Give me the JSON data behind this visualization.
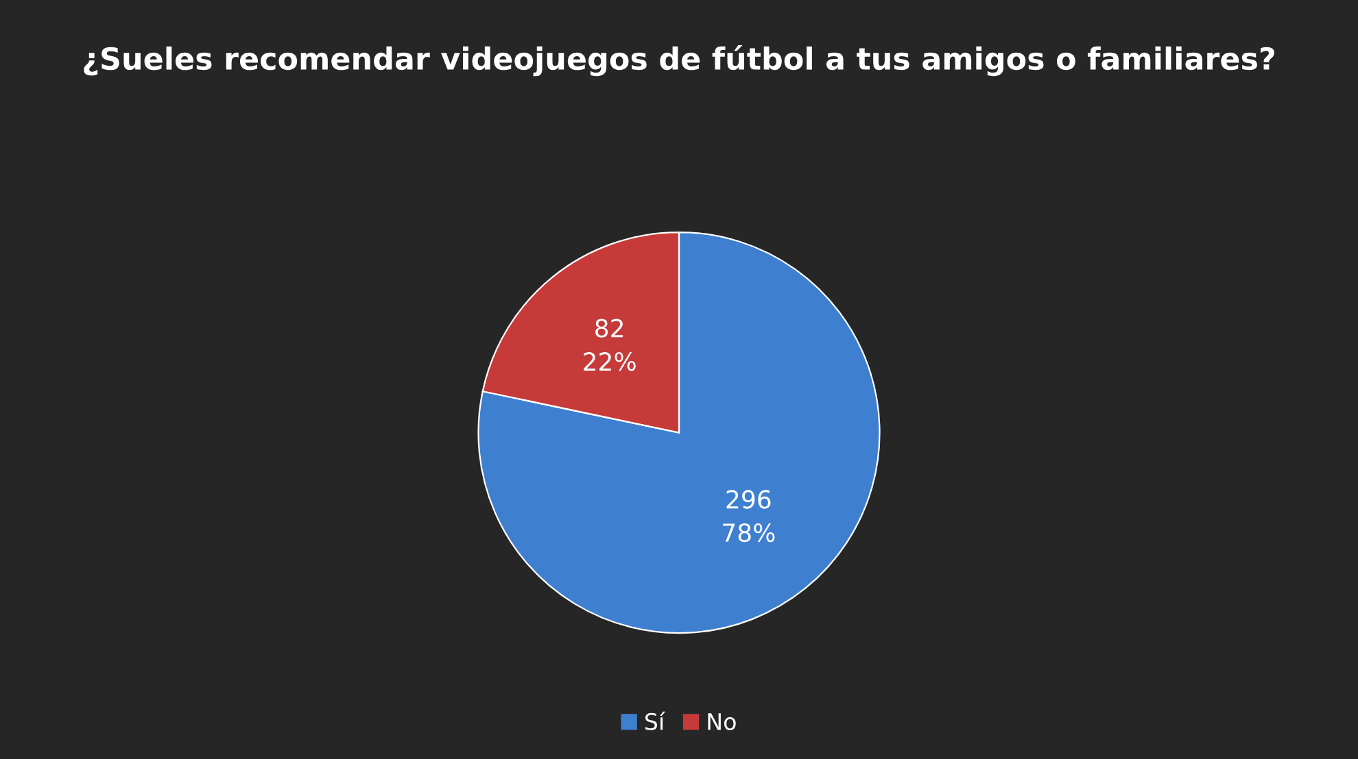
{
  "chart_data": {
    "type": "pie",
    "title": "¿Sueles recomendar videojuegos de fútbol a tus amigos o familiares?",
    "categories": [
      "Sí",
      "No"
    ],
    "values": [
      296,
      82
    ],
    "colors": [
      "#3f7fd0",
      "#c63a3a"
    ],
    "value_labels": [
      "296\n78%",
      "82\n22%"
    ],
    "legend": "bottom"
  }
}
